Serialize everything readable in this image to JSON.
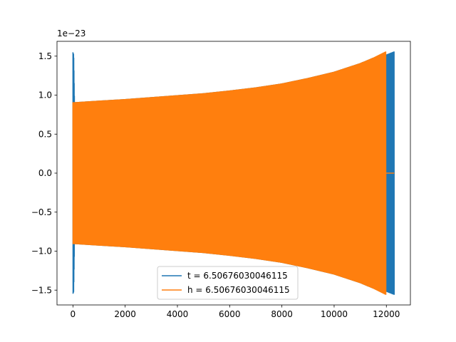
{
  "chart_data": {
    "type": "line",
    "title": "",
    "xlabel": "",
    "ylabel": "",
    "offset_text": "1e−23",
    "xlim": [
      -610,
      12920
    ],
    "ylim": [
      -1.69,
      1.69
    ],
    "xticks": [
      0,
      2000,
      4000,
      6000,
      8000,
      10000,
      12000
    ],
    "xtick_labels": [
      "0",
      "2000",
      "4000",
      "6000",
      "8000",
      "10000",
      "12000"
    ],
    "yticks": [
      -1.5,
      -1.0,
      -0.5,
      0.0,
      0.5,
      1.0,
      1.5
    ],
    "ytick_labels": [
      "−1.5",
      "−1.0",
      "−0.5",
      "0.0",
      "0.5",
      "1.0",
      "1.5"
    ],
    "grid": false,
    "legend_position": "lower center",
    "series": [
      {
        "name": "t = 6.50676030046115",
        "color": "#1f77b4",
        "x_start": 0,
        "x_end": 12300,
        "envelope_x": [
          0,
          30,
          60,
          1000,
          2000,
          3000,
          4000,
          5000,
          6000,
          7000,
          8000,
          9000,
          10000,
          11000,
          11500,
          12000,
          12300
        ],
        "envelope_amplitude": [
          1.55,
          1.52,
          0.91,
          0.93,
          0.95,
          0.975,
          1.0,
          1.025,
          1.06,
          1.1,
          1.15,
          1.22,
          1.3,
          1.41,
          1.48,
          1.52,
          1.56
        ]
      },
      {
        "name": "h = 6.50676030046115",
        "color": "#ff7f0e",
        "x_start": 0,
        "x_end": 12300,
        "envelope_x": [
          0,
          60,
          1000,
          2000,
          3000,
          4000,
          5000,
          6000,
          7000,
          8000,
          9000,
          10000,
          11000,
          11500,
          11980
        ],
        "envelope_amplitude": [
          0.91,
          0.91,
          0.93,
          0.95,
          0.975,
          1.0,
          1.025,
          1.06,
          1.1,
          1.15,
          1.22,
          1.3,
          1.41,
          1.48,
          1.56
        ],
        "flat_after": 11980
      }
    ]
  }
}
